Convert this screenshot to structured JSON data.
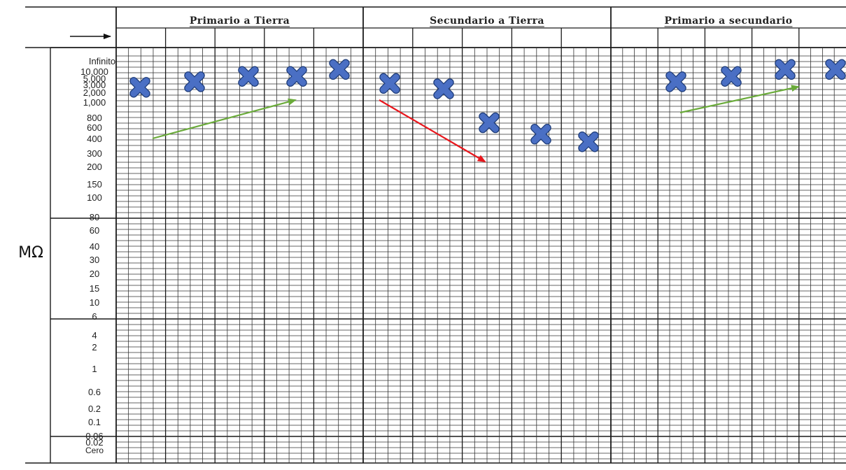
{
  "chart_data": {
    "type": "scatter",
    "ylabel": "MΩ",
    "yscale": "log",
    "y_tick_labels": [
      "Infinito",
      "10,000",
      "5,000",
      "3,000",
      "2,000",
      "1,000",
      "800",
      "600",
      "400",
      "300",
      "200",
      "150",
      "100",
      "80",
      "60",
      "40",
      "30",
      "20",
      "15",
      "10",
      "6",
      "4",
      "2",
      "1",
      "0.6",
      "0.2",
      "0.1",
      "0.06",
      "0.02",
      "Cero"
    ],
    "groups": [
      {
        "title": "Primario a Tierra",
        "marker_color": "#4a6fc4",
        "values": [
          2700,
          4000,
          6500,
          6500,
          11500
        ],
        "trend": "up",
        "trend_color": "#6aab3a"
      },
      {
        "title": "Secundario a Tierra",
        "marker_color": "#4a6fc4",
        "values": [
          3500,
          2500,
          700,
          480,
          380
        ],
        "trend": "down",
        "trend_color": "#e8161c"
      },
      {
        "title": "Primario a secundario",
        "marker_color": "#4a6fc4",
        "values": [
          4000,
          6500,
          11500,
          11500
        ],
        "trend": "up",
        "trend_color": "#6aab3a"
      }
    ],
    "grid": true,
    "legend": "none"
  },
  "header": {
    "arrow_icon": "right-arrow-icon"
  }
}
